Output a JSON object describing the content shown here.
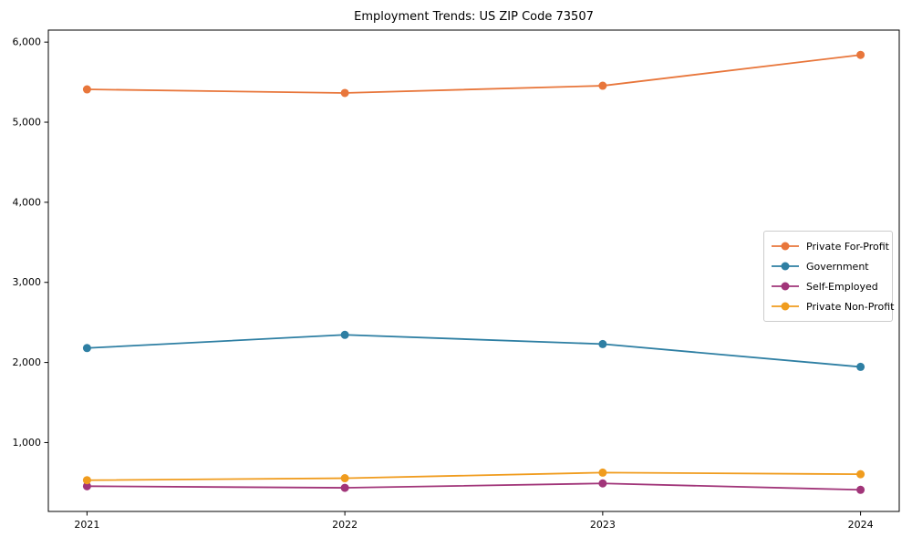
{
  "chart_data": {
    "type": "line",
    "title": "Employment Trends: US ZIP Code 73507",
    "x": [
      "2021",
      "2022",
      "2023",
      "2024"
    ],
    "series": [
      {
        "name": "Private For-Profit",
        "color": "#E8763B",
        "values": [
          5410,
          5365,
          5455,
          5840
        ]
      },
      {
        "name": "Government",
        "color": "#2E7FA3",
        "values": [
          2180,
          2345,
          2230,
          1945
        ]
      },
      {
        "name": "Self-Employed",
        "color": "#A13579",
        "values": [
          455,
          435,
          490,
          410
        ]
      },
      {
        "name": "Private Non-Profit",
        "color": "#F09C1E",
        "values": [
          530,
          555,
          625,
          605
        ]
      }
    ],
    "ylim": [
      140,
      6150
    ],
    "yticks": [
      1000,
      2000,
      3000,
      4000,
      5000,
      6000
    ],
    "ytick_labels": [
      "1,000",
      "2,000",
      "3,000",
      "4,000",
      "5,000",
      "6,000"
    ],
    "grid": false,
    "legend_position": "center-right",
    "axis_color": "#000000",
    "background": "#FFFFFF"
  }
}
